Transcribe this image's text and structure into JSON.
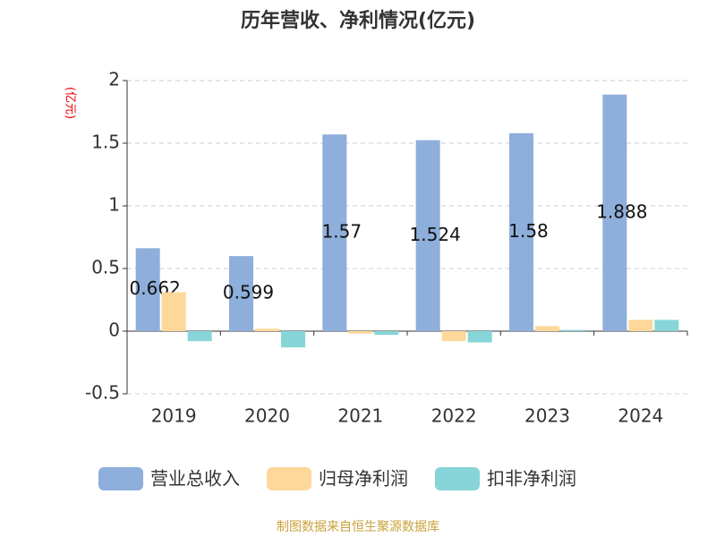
{
  "chart_data": {
    "type": "bar",
    "title": "历年营收、净利情况(亿元)",
    "y_label": "(亿元)",
    "categories": [
      "2019",
      "2020",
      "2021",
      "2022",
      "2023",
      "2024"
    ],
    "series": [
      {
        "name": "营业总收入",
        "color": "#8eaedb",
        "values": [
          0.662,
          0.599,
          1.57,
          1.524,
          1.58,
          1.888
        ],
        "show_labels": true
      },
      {
        "name": "归母净利润",
        "color": "#fdd89a",
        "values": [
          0.31,
          0.02,
          -0.02,
          -0.08,
          0.04,
          0.09
        ]
      },
      {
        "name": "扣非净利润",
        "color": "#87d5d8",
        "values": [
          -0.08,
          -0.13,
          -0.03,
          -0.09,
          0.01,
          0.09
        ]
      }
    ],
    "ylim": [
      -0.5,
      2
    ],
    "yticks": [
      -0.5,
      0,
      0.5,
      1,
      1.5,
      2
    ],
    "grid": true,
    "legend": "bottom",
    "source": "制图数据来自恒生聚源数据库"
  }
}
